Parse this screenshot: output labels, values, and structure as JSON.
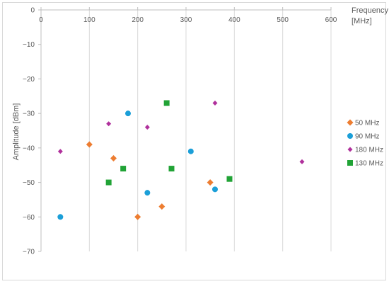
{
  "chart_data": {
    "type": "scatter",
    "title": "",
    "xlabel_line1": "Frequency",
    "xlabel_line2": "[MHz]",
    "ylabel": "Amplitude [dBm]",
    "xlim": [
      0,
      600
    ],
    "ylim": [
      -70,
      0
    ],
    "x_ticks": [
      0,
      100,
      200,
      300,
      400,
      500,
      600
    ],
    "y_ticks": [
      0,
      -10,
      -20,
      -30,
      -40,
      -50,
      -60,
      -70
    ],
    "x_tick_labels": [
      "0",
      "100",
      "200",
      "300",
      "400",
      "500",
      "600"
    ],
    "y_tick_labels": [
      "0",
      "−10",
      "−20",
      "−30",
      "−40",
      "−50",
      "−60",
      "−70"
    ],
    "x_axis_position": "top",
    "grid": "vertical",
    "legend_position": "right",
    "series": [
      {
        "name": "50 MHz",
        "color": "#ED7D31",
        "marker": "diamond",
        "points": [
          [
            100,
            -39
          ],
          [
            150,
            -43
          ],
          [
            200,
            -60
          ],
          [
            250,
            -57
          ],
          [
            350,
            -50
          ]
        ]
      },
      {
        "name": "90 MHz",
        "color": "#1B9FD8",
        "marker": "circle",
        "points": [
          [
            40,
            -60
          ],
          [
            180,
            -30
          ],
          [
            220,
            -53
          ],
          [
            310,
            -41
          ],
          [
            360,
            -52
          ]
        ]
      },
      {
        "name": "180 MHz",
        "color": "#B0309C",
        "marker": "diamond-small",
        "points": [
          [
            40,
            -41
          ],
          [
            140,
            -33
          ],
          [
            220,
            -34
          ],
          [
            360,
            -27
          ],
          [
            540,
            -44
          ]
        ]
      },
      {
        "name": "130 MHz",
        "color": "#21A336",
        "marker": "square",
        "points": [
          [
            140,
            -50
          ],
          [
            170,
            -46
          ],
          [
            260,
            -27
          ],
          [
            270,
            -46
          ],
          [
            390,
            -49
          ]
        ]
      }
    ]
  }
}
